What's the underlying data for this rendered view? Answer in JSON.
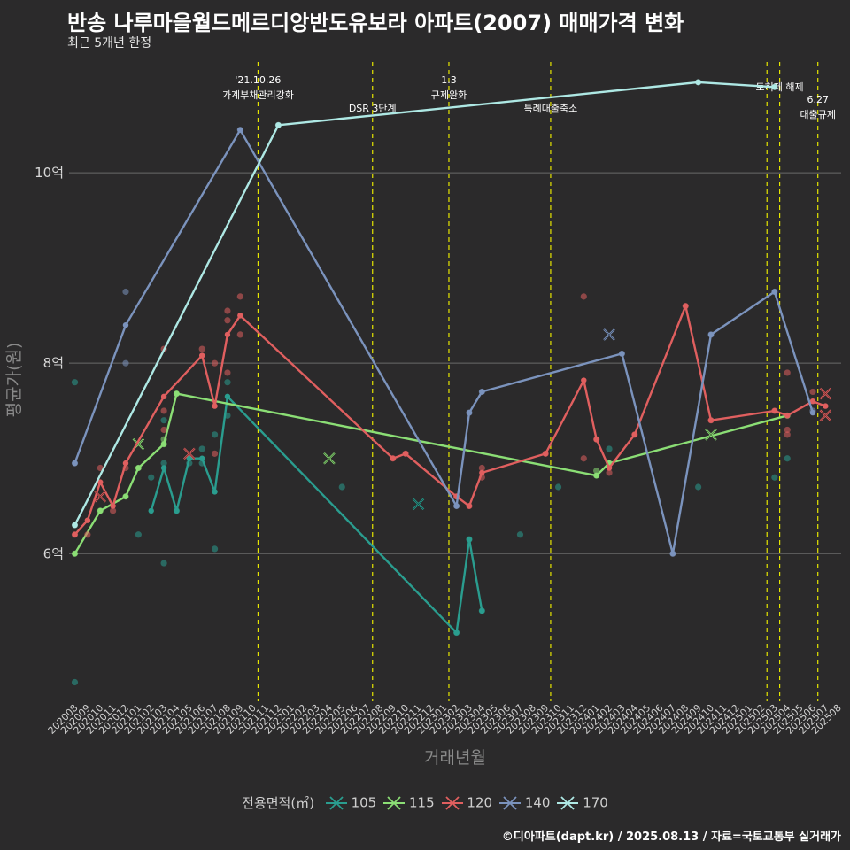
{
  "title": "반송 나루마을월드메르디앙반도유보라 아파트(2007) 매매가격 변화",
  "subtitle": "최근 5개년 한정",
  "caption": "©디아파트(dapt.kr) / 2025.08.13 / 자료=국토교통부 실거래가",
  "chart_data": {
    "type": "line",
    "xlabel": "거래년월",
    "ylabel": "평균가(원)",
    "months": [
      "202008",
      "202009",
      "202010",
      "202011",
      "202012",
      "202101",
      "202102",
      "202103",
      "202104",
      "202105",
      "202106",
      "202107",
      "202108",
      "202109",
      "202110",
      "202111",
      "202112",
      "202201",
      "202202",
      "202203",
      "202204",
      "202205",
      "202206",
      "202207",
      "202208",
      "202209",
      "202210",
      "202211",
      "202212",
      "202301",
      "202302",
      "202303",
      "202304",
      "202305",
      "202306",
      "202307",
      "202308",
      "202309",
      "202310",
      "202311",
      "202312",
      "202401",
      "202402",
      "202403",
      "202404",
      "202405",
      "202406",
      "202407",
      "202408",
      "202409",
      "202410",
      "202411",
      "202412",
      "202501",
      "202502",
      "202503",
      "202504",
      "202505",
      "202506",
      "202507",
      "202508"
    ],
    "ylim": [
      4.45,
      11.2
    ],
    "yticks": [
      {
        "value": 6,
        "label": "6억"
      },
      {
        "value": 8,
        "label": "8억"
      },
      {
        "value": 10,
        "label": "10억"
      }
    ],
    "legend_title": "전용면적(㎡)",
    "events": [
      {
        "index": 14.4,
        "label": "'21.10.26\n가계부채관리강화",
        "row": 0
      },
      {
        "index": 23.4,
        "label": "DSR 3단계",
        "row": 1
      },
      {
        "index": 29.4,
        "label": "1.3\n규제완화",
        "row": 0
      },
      {
        "index": 37.4,
        "label": "특례대출축소",
        "row": 1
      },
      {
        "index": 54.4,
        "label": "",
        "row": 0
      },
      {
        "index": 55.4,
        "label": "토허제 해제",
        "row": 0
      },
      {
        "index": 58.4,
        "label": "6.27\n대출규제",
        "row": 2
      }
    ],
    "series": [
      {
        "name": "105",
        "color": "#2a9d8f",
        "line": [
          [
            6,
            6.45
          ],
          [
            7,
            6.9
          ],
          [
            8,
            6.45
          ],
          [
            9,
            7.0
          ],
          [
            10,
            7.0
          ],
          [
            11,
            6.65
          ],
          [
            12,
            7.65
          ],
          [
            30,
            5.17
          ],
          [
            31,
            6.15
          ],
          [
            32,
            5.4
          ]
        ],
        "points": [
          [
            0,
            7.8
          ],
          [
            0,
            4.65
          ],
          [
            5,
            6.2
          ],
          [
            6,
            6.8
          ],
          [
            7,
            5.9
          ],
          [
            7,
            6.95
          ],
          [
            7,
            7.4
          ],
          [
            8,
            6.45
          ],
          [
            9,
            6.95
          ],
          [
            10,
            6.95
          ],
          [
            10,
            7.1
          ],
          [
            11,
            6.05
          ],
          [
            11,
            7.25
          ],
          [
            12,
            7.45
          ],
          [
            12,
            7.8
          ],
          [
            21,
            6.7
          ],
          [
            30,
            5.17
          ],
          [
            31,
            6.15
          ],
          [
            32,
            5.4
          ],
          [
            35,
            6.2
          ],
          [
            38,
            6.7
          ],
          [
            42,
            7.1
          ],
          [
            49,
            6.7
          ],
          [
            55,
            6.8
          ],
          [
            56,
            7.0
          ]
        ],
        "crosses": [
          [
            27,
            6.52
          ]
        ]
      },
      {
        "name": "115",
        "color": "#8bde75",
        "line": [
          [
            0,
            6.0
          ],
          [
            2,
            6.45
          ],
          [
            4,
            6.6
          ],
          [
            5,
            6.9
          ],
          [
            7,
            7.15
          ],
          [
            8,
            7.68
          ],
          [
            41,
            6.82
          ],
          [
            42,
            6.95
          ],
          [
            56,
            7.45
          ]
        ],
        "points": [
          [
            0,
            6.0
          ],
          [
            2,
            6.45
          ],
          [
            4,
            6.6
          ],
          [
            5,
            6.9
          ],
          [
            7,
            7.15
          ],
          [
            7,
            7.2
          ],
          [
            8,
            7.68
          ],
          [
            41,
            6.82
          ],
          [
            41,
            6.87
          ],
          [
            42,
            6.95
          ],
          [
            56,
            7.45
          ]
        ],
        "crosses": [
          [
            5,
            7.15
          ],
          [
            20,
            7.0
          ],
          [
            50,
            7.25
          ]
        ]
      },
      {
        "name": "120",
        "color": "#e05f5f",
        "line": [
          [
            0,
            6.2
          ],
          [
            1,
            6.35
          ],
          [
            2,
            6.75
          ],
          [
            3,
            6.5
          ],
          [
            4,
            6.95
          ],
          [
            7,
            7.65
          ],
          [
            10,
            8.08
          ],
          [
            11,
            7.55
          ],
          [
            12,
            8.3
          ],
          [
            13,
            8.5
          ],
          [
            25,
            7.0
          ],
          [
            26,
            7.05
          ],
          [
            30,
            6.6
          ],
          [
            31,
            6.5
          ],
          [
            32,
            6.85
          ],
          [
            37,
            7.05
          ],
          [
            40,
            7.82
          ],
          [
            41,
            7.2
          ],
          [
            42,
            6.9
          ],
          [
            44,
            7.25
          ],
          [
            48,
            8.6
          ],
          [
            50,
            7.4
          ],
          [
            55,
            7.5
          ],
          [
            56,
            7.45
          ],
          [
            58,
            7.6
          ],
          [
            59,
            7.55
          ]
        ],
        "points": [
          [
            0,
            6.2
          ],
          [
            1,
            6.2
          ],
          [
            2,
            6.9
          ],
          [
            3,
            6.45
          ],
          [
            4,
            6.9
          ],
          [
            7,
            7.3
          ],
          [
            7,
            8.15
          ],
          [
            7,
            7.5
          ],
          [
            10,
            8.15
          ],
          [
            11,
            8.0
          ],
          [
            11,
            7.05
          ],
          [
            12,
            8.55
          ],
          [
            12,
            7.9
          ],
          [
            12,
            8.45
          ],
          [
            13,
            8.7
          ],
          [
            13,
            8.3
          ],
          [
            25,
            7.0
          ],
          [
            26,
            7.05
          ],
          [
            30,
            6.6
          ],
          [
            31,
            6.5
          ],
          [
            32,
            6.9
          ],
          [
            32,
            6.8
          ],
          [
            37,
            7.05
          ],
          [
            40,
            7.0
          ],
          [
            40,
            8.7
          ],
          [
            41,
            7.2
          ],
          [
            42,
            6.85
          ],
          [
            44,
            7.25
          ],
          [
            48,
            8.6
          ],
          [
            50,
            7.4
          ],
          [
            55,
            7.5
          ],
          [
            56,
            7.3
          ],
          [
            56,
            7.25
          ],
          [
            56,
            7.9
          ],
          [
            58,
            7.7
          ]
        ],
        "crosses": [
          [
            2,
            6.6
          ],
          [
            9,
            7.05
          ],
          [
            59,
            7.68
          ],
          [
            59,
            7.45
          ]
        ]
      },
      {
        "name": "140",
        "color": "#7b93bd",
        "line": [
          [
            0,
            6.95
          ],
          [
            4,
            8.4
          ],
          [
            13,
            10.45
          ],
          [
            30,
            6.5
          ],
          [
            31,
            7.48
          ],
          [
            32,
            7.7
          ],
          [
            43,
            8.1
          ],
          [
            47,
            6.0
          ],
          [
            50,
            8.3
          ],
          [
            55,
            8.75
          ],
          [
            58,
            7.48
          ]
        ],
        "points": [
          [
            0,
            6.95
          ],
          [
            4,
            8.75
          ],
          [
            4,
            8.0
          ],
          [
            13,
            10.45
          ],
          [
            30,
            6.5
          ],
          [
            31,
            7.48
          ],
          [
            32,
            7.7
          ],
          [
            43,
            8.1
          ],
          [
            47,
            6.0
          ],
          [
            50,
            8.3
          ],
          [
            55,
            8.75
          ],
          [
            58,
            7.5
          ]
        ],
        "crosses": [
          [
            42,
            8.3
          ]
        ]
      },
      {
        "name": "170",
        "color": "#aee8e4",
        "line": [
          [
            0,
            6.3
          ],
          [
            16,
            10.5
          ],
          [
            49,
            10.95
          ],
          [
            55,
            10.9
          ]
        ],
        "points": [
          [
            0,
            6.3
          ],
          [
            16,
            10.5
          ],
          [
            49,
            10.95
          ],
          [
            55,
            10.9
          ]
        ],
        "crosses": []
      }
    ]
  }
}
